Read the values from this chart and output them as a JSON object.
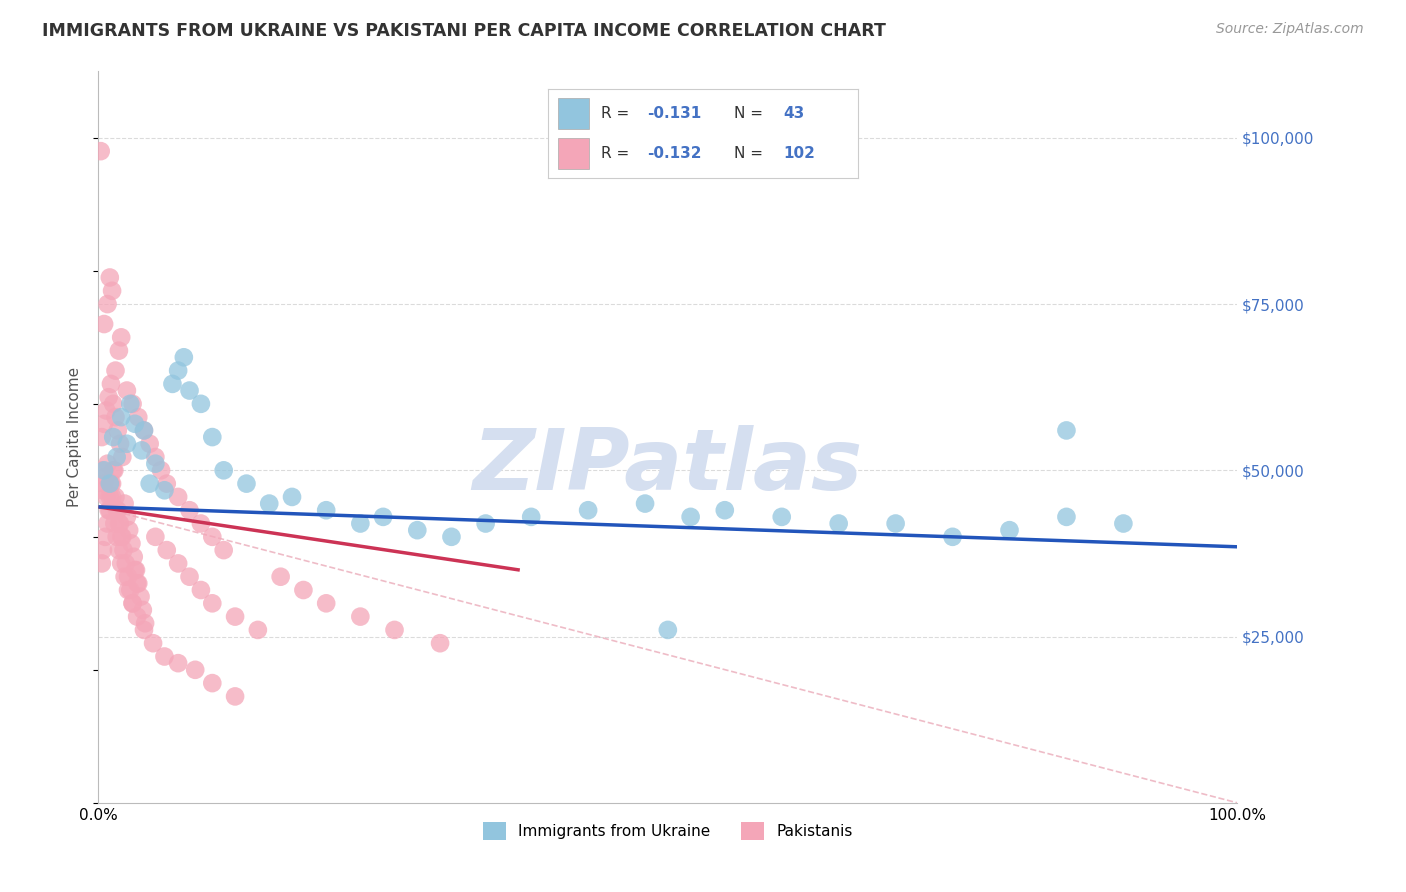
{
  "title": "IMMIGRANTS FROM UKRAINE VS PAKISTANI PER CAPITA INCOME CORRELATION CHART",
  "source": "Source: ZipAtlas.com",
  "ylabel": "Per Capita Income",
  "xlim": [
    0.0,
    1.0
  ],
  "ylim": [
    0,
    110000
  ],
  "yticks": [
    25000,
    50000,
    75000,
    100000
  ],
  "ytick_labels": [
    "$25,000",
    "$50,000",
    "$75,000",
    "$100,000"
  ],
  "blue_color": "#92c5de",
  "pink_color": "#f4a6b8",
  "line_blue_color": "#2255bb",
  "line_pink_color": "#cc3355",
  "dash_color": "#e8a0b0",
  "watermark_color": "#d5dff0",
  "title_color": "#333333",
  "source_color": "#999999",
  "ylabel_color": "#555555",
  "ytick_color": "#4472c4",
  "legend_text_color": "#333333",
  "legend_value_color": "#4472c4",
  "grid_color": "#cccccc",
  "blue_line_x": [
    0.0,
    1.0
  ],
  "blue_line_y": [
    44500,
    38500
  ],
  "pink_line_x": [
    0.0,
    0.37
  ],
  "pink_line_y": [
    44500,
    35000
  ],
  "dash_line_x": [
    0.0,
    1.0
  ],
  "dash_line_y": [
    44500,
    0
  ],
  "ukraine_x": [
    0.005,
    0.01,
    0.013,
    0.016,
    0.02,
    0.025,
    0.028,
    0.032,
    0.038,
    0.04,
    0.045,
    0.05,
    0.058,
    0.065,
    0.07,
    0.075,
    0.08,
    0.09,
    0.1,
    0.11,
    0.13,
    0.15,
    0.17,
    0.2,
    0.23,
    0.25,
    0.28,
    0.31,
    0.34,
    0.38,
    0.43,
    0.48,
    0.52,
    0.55,
    0.6,
    0.65,
    0.7,
    0.75,
    0.8,
    0.85,
    0.9,
    0.85,
    0.5
  ],
  "ukraine_y": [
    50000,
    48000,
    55000,
    52000,
    58000,
    54000,
    60000,
    57000,
    53000,
    56000,
    48000,
    51000,
    47000,
    63000,
    65000,
    67000,
    62000,
    60000,
    55000,
    50000,
    48000,
    45000,
    46000,
    44000,
    42000,
    43000,
    41000,
    40000,
    42000,
    43000,
    44000,
    45000,
    43000,
    44000,
    43000,
    42000,
    42000,
    40000,
    41000,
    56000,
    42000,
    43000,
    26000
  ],
  "pakistani_x": [
    0.003,
    0.005,
    0.007,
    0.009,
    0.011,
    0.013,
    0.015,
    0.017,
    0.019,
    0.021,
    0.023,
    0.025,
    0.027,
    0.029,
    0.031,
    0.033,
    0.035,
    0.037,
    0.039,
    0.041,
    0.003,
    0.005,
    0.007,
    0.009,
    0.011,
    0.013,
    0.015,
    0.017,
    0.019,
    0.021,
    0.004,
    0.006,
    0.008,
    0.01,
    0.012,
    0.014,
    0.016,
    0.018,
    0.02,
    0.022,
    0.024,
    0.026,
    0.028,
    0.03,
    0.032,
    0.034,
    0.05,
    0.06,
    0.07,
    0.08,
    0.09,
    0.1,
    0.12,
    0.14,
    0.16,
    0.18,
    0.2,
    0.23,
    0.26,
    0.3,
    0.005,
    0.008,
    0.01,
    0.012,
    0.015,
    0.018,
    0.02,
    0.025,
    0.03,
    0.035,
    0.04,
    0.045,
    0.05,
    0.055,
    0.06,
    0.07,
    0.08,
    0.09,
    0.1,
    0.11,
    0.003,
    0.004,
    0.006,
    0.008,
    0.01,
    0.012,
    0.014,
    0.016,
    0.018,
    0.02,
    0.023,
    0.026,
    0.03,
    0.034,
    0.04,
    0.048,
    0.058,
    0.07,
    0.085,
    0.1,
    0.12,
    0.002
  ],
  "pakistani_y": [
    50000,
    48000,
    46000,
    44000,
    48000,
    50000,
    46000,
    44000,
    42000,
    40000,
    45000,
    43000,
    41000,
    39000,
    37000,
    35000,
    33000,
    31000,
    29000,
    27000,
    55000,
    57000,
    59000,
    61000,
    63000,
    60000,
    58000,
    56000,
    54000,
    52000,
    47000,
    49000,
    51000,
    46000,
    48000,
    50000,
    44000,
    42000,
    40000,
    38000,
    36000,
    34000,
    32000,
    30000,
    35000,
    33000,
    40000,
    38000,
    36000,
    34000,
    32000,
    30000,
    28000,
    26000,
    34000,
    32000,
    30000,
    28000,
    26000,
    24000,
    72000,
    75000,
    79000,
    77000,
    65000,
    68000,
    70000,
    62000,
    60000,
    58000,
    56000,
    54000,
    52000,
    50000,
    48000,
    46000,
    44000,
    42000,
    40000,
    38000,
    36000,
    38000,
    40000,
    42000,
    44000,
    46000,
    42000,
    40000,
    38000,
    36000,
    34000,
    32000,
    30000,
    28000,
    26000,
    24000,
    22000,
    21000,
    20000,
    18000,
    16000,
    98000
  ]
}
